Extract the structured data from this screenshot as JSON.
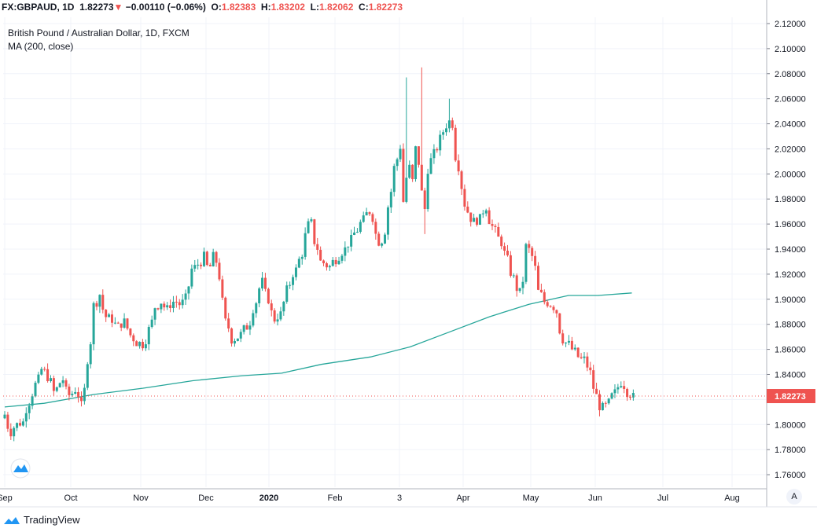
{
  "header": {
    "symbol": "FX:GBPAUD, 1D",
    "last": "1.82273",
    "arrow": "▼",
    "change": "−0.00110 (−0.06%)",
    "o_label": "O:",
    "o_value": "1.82383",
    "h_label": "H:",
    "h_value": "1.83202",
    "l_label": "L:",
    "l_value": "1.82062",
    "c_label": "C:",
    "c_value": "1.82273"
  },
  "legend": {
    "title": "British Pound / Australian Dollar, 1D, FXCM",
    "indicator": "MA (200, close)"
  },
  "footer": {
    "brand": "TradingView",
    "scale_button": "A"
  },
  "colors": {
    "up": "#26a69a",
    "down": "#ef5350",
    "ma": "#26a69a",
    "grid": "#f0f3fa",
    "price_tag": "#ef5350"
  },
  "chart_data": {
    "type": "candlestick",
    "ylim": [
      1.75,
      2.125
    ],
    "y_ticks": [
      "2.12000",
      "2.10000",
      "2.08000",
      "2.06000",
      "2.04000",
      "2.02000",
      "2.00000",
      "1.98000",
      "1.96000",
      "1.94000",
      "1.92000",
      "1.90000",
      "1.88000",
      "1.86000",
      "1.84000",
      "1.82000",
      "1.80000",
      "1.78000",
      "1.76000"
    ],
    "x_labels": [
      "Sep",
      "Oct",
      "Nov",
      "Dec",
      "2020",
      "Feb",
      "3",
      "Apr",
      "May",
      "Jun",
      "Jul",
      "Aug"
    ],
    "x_label_bold": "2020",
    "last_price": "1.82273",
    "last_price_value": 1.82273,
    "close_series": [
      {
        "d": 0,
        "c": 1.808
      },
      {
        "d": 3,
        "c": 1.794
      },
      {
        "d": 6,
        "c": 1.8
      },
      {
        "d": 9,
        "c": 1.802
      },
      {
        "d": 12,
        "c": 1.818
      },
      {
        "d": 16,
        "c": 1.832
      },
      {
        "d": 19,
        "c": 1.844
      },
      {
        "d": 22,
        "c": 1.838
      },
      {
        "d": 25,
        "c": 1.826
      },
      {
        "d": 29,
        "c": 1.836
      },
      {
        "d": 32,
        "c": 1.822
      },
      {
        "d": 36,
        "c": 1.828
      },
      {
        "d": 39,
        "c": 1.815
      },
      {
        "d": 42,
        "c": 1.852
      },
      {
        "d": 45,
        "c": 1.895
      },
      {
        "d": 48,
        "c": 1.904
      },
      {
        "d": 51,
        "c": 1.886
      },
      {
        "d": 54,
        "c": 1.884
      },
      {
        "d": 57,
        "c": 1.878
      },
      {
        "d": 60,
        "c": 1.882
      },
      {
        "d": 63,
        "c": 1.874
      },
      {
        "d": 66,
        "c": 1.866
      },
      {
        "d": 70,
        "c": 1.864
      },
      {
        "d": 73,
        "c": 1.876
      },
      {
        "d": 76,
        "c": 1.894
      },
      {
        "d": 79,
        "c": 1.898
      },
      {
        "d": 82,
        "c": 1.892
      },
      {
        "d": 86,
        "c": 1.9
      },
      {
        "d": 89,
        "c": 1.894
      },
      {
        "d": 92,
        "c": 1.904
      },
      {
        "d": 95,
        "c": 1.924
      },
      {
        "d": 98,
        "c": 1.928
      },
      {
        "d": 101,
        "c": 1.934
      },
      {
        "d": 103,
        "c": 1.918
      },
      {
        "d": 106,
        "c": 1.942
      },
      {
        "d": 109,
        "c": 1.906
      },
      {
        "d": 112,
        "c": 1.882
      },
      {
        "d": 115,
        "c": 1.868
      },
      {
        "d": 118,
        "c": 1.87
      },
      {
        "d": 121,
        "c": 1.876
      },
      {
        "d": 124,
        "c": 1.882
      },
      {
        "d": 127,
        "c": 1.898
      },
      {
        "d": 130,
        "c": 1.914
      },
      {
        "d": 133,
        "c": 1.9
      },
      {
        "d": 136,
        "c": 1.884
      },
      {
        "d": 139,
        "c": 1.888
      },
      {
        "d": 142,
        "c": 1.902
      },
      {
        "d": 145,
        "c": 1.918
      },
      {
        "d": 148,
        "c": 1.926
      },
      {
        "d": 151,
        "c": 1.942
      },
      {
        "d": 154,
        "c": 1.968
      },
      {
        "d": 157,
        "c": 1.946
      },
      {
        "d": 160,
        "c": 1.93
      },
      {
        "d": 164,
        "c": 1.926
      },
      {
        "d": 167,
        "c": 1.932
      },
      {
        "d": 170,
        "c": 1.936
      },
      {
        "d": 173,
        "c": 1.942
      },
      {
        "d": 176,
        "c": 1.95
      },
      {
        "d": 179,
        "c": 1.958
      },
      {
        "d": 182,
        "c": 1.966
      },
      {
        "d": 185,
        "c": 1.972
      },
      {
        "d": 188,
        "c": 1.952
      },
      {
        "d": 190,
        "c": 1.94
      },
      {
        "d": 193,
        "c": 1.962
      },
      {
        "d": 196,
        "c": 1.998
      },
      {
        "d": 198,
        "c": 2.012
      },
      {
        "d": 200,
        "c": 2.022
      },
      {
        "d": 202,
        "c": 1.978
      },
      {
        "d": 204,
        "c": 2.016
      },
      {
        "d": 206,
        "c": 1.994
      },
      {
        "d": 208,
        "c": 2.02
      },
      {
        "d": 210,
        "c": 1.998
      },
      {
        "d": 212,
        "c": 1.972
      },
      {
        "d": 214,
        "c": 2.004
      },
      {
        "d": 216,
        "c": 2.018
      },
      {
        "d": 218,
        "c": 2.014
      },
      {
        "d": 220,
        "c": 2.028
      },
      {
        "d": 222,
        "c": 2.034
      },
      {
        "d": 224,
        "c": 2.044
      },
      {
        "d": 226,
        "c": 2.04
      },
      {
        "d": 228,
        "c": 2.014
      },
      {
        "d": 230,
        "c": 1.998
      },
      {
        "d": 232,
        "c": 1.982
      },
      {
        "d": 234,
        "c": 1.97
      },
      {
        "d": 237,
        "c": 1.962
      },
      {
        "d": 240,
        "c": 1.964
      },
      {
        "d": 243,
        "c": 1.974
      },
      {
        "d": 246,
        "c": 1.958
      },
      {
        "d": 249,
        "c": 1.952
      },
      {
        "d": 252,
        "c": 1.942
      },
      {
        "d": 255,
        "c": 1.926
      },
      {
        "d": 258,
        "c": 1.912
      },
      {
        "d": 261,
        "c": 1.902
      },
      {
        "d": 264,
        "c": 1.942
      },
      {
        "d": 267,
        "c": 1.934
      },
      {
        "d": 270,
        "c": 1.906
      },
      {
        "d": 273,
        "c": 1.898
      },
      {
        "d": 276,
        "c": 1.896
      },
      {
        "d": 279,
        "c": 1.89
      },
      {
        "d": 282,
        "c": 1.868
      },
      {
        "d": 285,
        "c": 1.864
      },
      {
        "d": 288,
        "c": 1.858
      },
      {
        "d": 291,
        "c": 1.852
      },
      {
        "d": 294,
        "c": 1.852
      },
      {
        "d": 297,
        "c": 1.836
      },
      {
        "d": 300,
        "c": 1.816
      },
      {
        "d": 303,
        "c": 1.812
      },
      {
        "d": 306,
        "c": 1.82
      },
      {
        "d": 309,
        "c": 1.828
      },
      {
        "d": 312,
        "c": 1.834
      },
      {
        "d": 315,
        "c": 1.826
      },
      {
        "d": 318,
        "c": 1.822
      }
    ],
    "ma200": [
      {
        "d": 0,
        "v": 1.814
      },
      {
        "d": 20,
        "v": 1.817
      },
      {
        "d": 45,
        "v": 1.824
      },
      {
        "d": 70,
        "v": 1.829
      },
      {
        "d": 95,
        "v": 1.835
      },
      {
        "d": 120,
        "v": 1.839
      },
      {
        "d": 140,
        "v": 1.841
      },
      {
        "d": 160,
        "v": 1.848
      },
      {
        "d": 185,
        "v": 1.854
      },
      {
        "d": 205,
        "v": 1.862
      },
      {
        "d": 225,
        "v": 1.874
      },
      {
        "d": 245,
        "v": 1.886
      },
      {
        "d": 265,
        "v": 1.896
      },
      {
        "d": 285,
        "v": 1.903
      },
      {
        "d": 300,
        "v": 1.903
      },
      {
        "d": 317,
        "v": 1.905
      }
    ]
  }
}
